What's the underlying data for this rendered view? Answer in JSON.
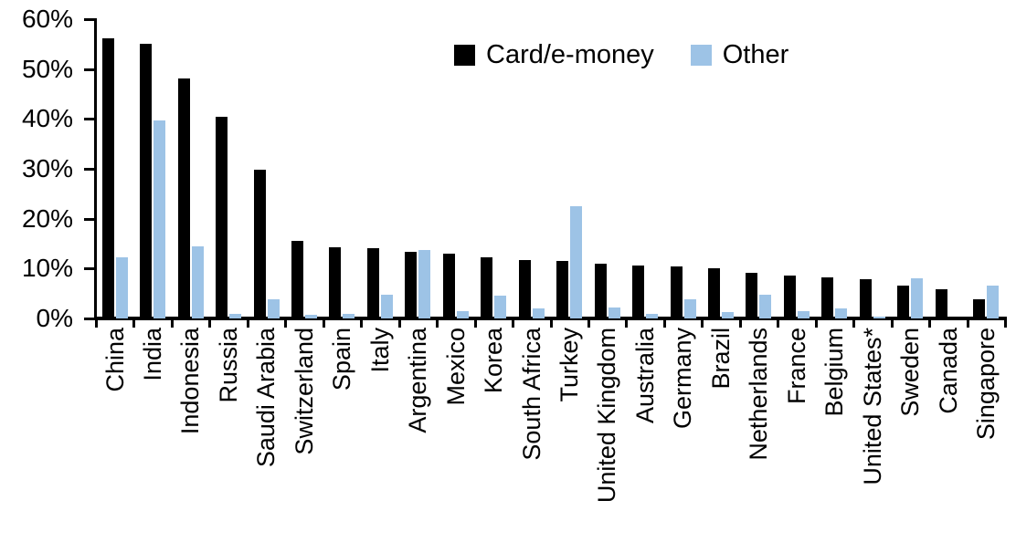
{
  "chart_data": {
    "type": "bar",
    "title": "",
    "xlabel": "",
    "ylabel": "",
    "ylim": [
      0,
      60
    ],
    "ytick_labels": [
      "0%",
      "10%",
      "20%",
      "30%",
      "40%",
      "50%",
      "60%"
    ],
    "ytick_values": [
      0,
      10,
      20,
      30,
      40,
      50,
      60
    ],
    "grid": false,
    "legend_position": "top-center",
    "categories": [
      "China",
      "India",
      "Indonesia",
      "Russia",
      "Saudi Arabia",
      "Switzerland",
      "Spain",
      "Italy",
      "Argentina",
      "Mexico",
      "Korea",
      "South Africa",
      "Turkey",
      "United Kingdom",
      "Australia",
      "Germany",
      "Brazil",
      "Netherlands",
      "France",
      "Belgium",
      "United States*",
      "Sweden",
      "Canada",
      "Singapore"
    ],
    "series": [
      {
        "name": "Card/e-money",
        "color": "#000000",
        "values": [
          56.2,
          55.0,
          48.2,
          40.5,
          29.8,
          15.6,
          14.2,
          14.1,
          13.4,
          13.0,
          12.2,
          11.7,
          11.6,
          11.0,
          10.7,
          10.4,
          10.0,
          9.2,
          8.6,
          8.2,
          7.9,
          6.6,
          5.9,
          3.9
        ]
      },
      {
        "name": "Other",
        "color": "#9DC3E6",
        "values": [
          12.3,
          39.7,
          14.4,
          0.9,
          3.8,
          0.8,
          1.0,
          4.7,
          13.8,
          1.4,
          4.6,
          2.1,
          22.5,
          2.2,
          1.0,
          3.8,
          1.2,
          4.8,
          1.5,
          2.1,
          0.3,
          8.1,
          0,
          6.6
        ]
      }
    ]
  }
}
